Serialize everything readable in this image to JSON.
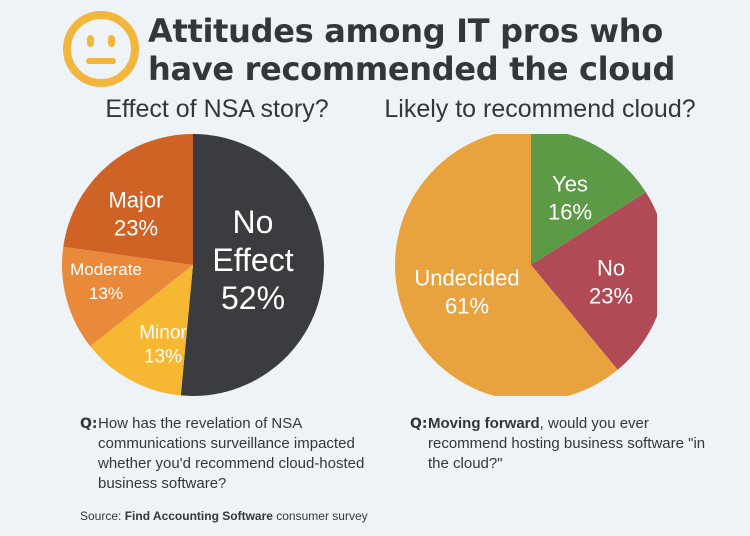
{
  "title": {
    "line1": "Attitudes among IT pros who",
    "line2": "have recommended the cloud"
  },
  "icon": {
    "name": "neutral-face-icon",
    "color": "#f3b63c"
  },
  "chart_data": [
    {
      "type": "pie",
      "title": "Effect of NSA story?",
      "slices": [
        {
          "label": "No Effect",
          "value": 52,
          "display": [
            "No",
            "Effect",
            "52%"
          ],
          "color": "#3b3c3f"
        },
        {
          "label": "Minor",
          "value": 13,
          "display": [
            "Minor",
            "13%"
          ],
          "color": "#f6b733"
        },
        {
          "label": "Moderate",
          "value": 13,
          "display": [
            "Moderate",
            "13%"
          ],
          "color": "#e98a3b"
        },
        {
          "label": "Major",
          "value": 23,
          "display": [
            "Major",
            "23%"
          ],
          "color": "#cf6225"
        }
      ]
    },
    {
      "type": "pie",
      "title": "Likely to recommend cloud?",
      "slices": [
        {
          "label": "Yes",
          "value": 16,
          "display": [
            "Yes",
            "16%"
          ],
          "color": "#5c9a45"
        },
        {
          "label": "No",
          "value": 23,
          "display": [
            "No",
            "23%"
          ],
          "color": "#b04b55"
        },
        {
          "label": "Undecided",
          "value": 61,
          "display": [
            "Undecided",
            "61%"
          ],
          "color": "#e8a33f"
        }
      ]
    }
  ],
  "questions": {
    "left": {
      "label": "Q:",
      "text": "How has the revelation of NSA communications surveillance impacted whether you'd recommend cloud-hosted business software?"
    },
    "right": {
      "label": "Q:",
      "emphasis": "Moving forward",
      "text": ", would you ever recommend hosting business software \"in the cloud?\""
    }
  },
  "source": {
    "prefix": "Source: ",
    "name": "Find Accounting Software",
    "suffix": " consumer survey"
  }
}
